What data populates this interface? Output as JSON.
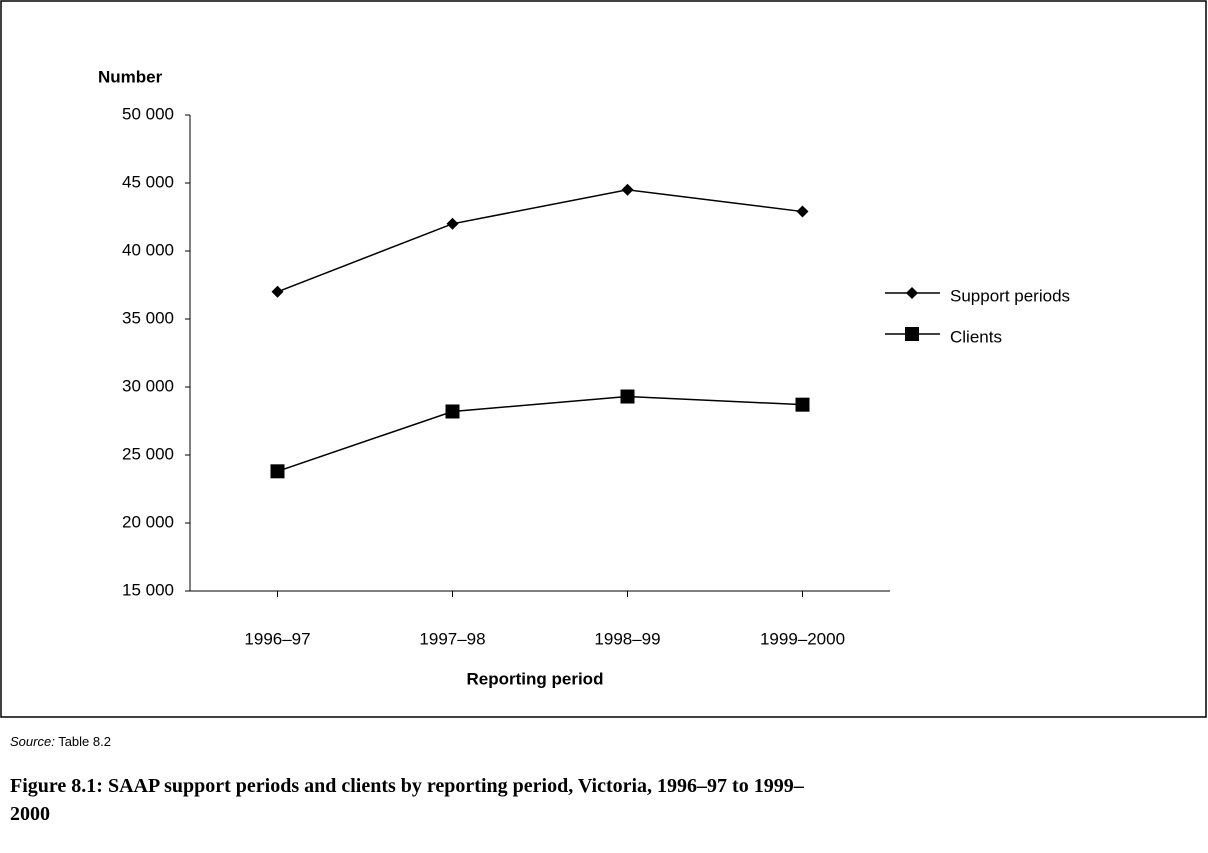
{
  "chart_data": {
    "type": "line",
    "title": "Figure 8.1: SAAP support periods and clients by reporting period, Victoria, 1996–97 to 1999–2000",
    "source_label": "Source:",
    "source_text": "Table 8.2",
    "y_label": "Number",
    "x_label": "Reporting period",
    "categories": [
      "1996–97",
      "1997–98",
      "1998–99",
      "1999–2000"
    ],
    "series": [
      {
        "name": "Support periods",
        "color": "#000000",
        "marker": "diamond",
        "values": [
          37000,
          42000,
          44500,
          42900
        ]
      },
      {
        "name": "Clients",
        "color": "#000000",
        "marker": "square",
        "values": [
          23800,
          28200,
          29300,
          28700
        ]
      }
    ],
    "ylim": [
      15000,
      50000
    ],
    "yticks": [
      {
        "value": 15000,
        "label": "15 000"
      },
      {
        "value": 20000,
        "label": "20 000"
      },
      {
        "value": 25000,
        "label": "25 000"
      },
      {
        "value": 30000,
        "label": "30 000"
      },
      {
        "value": 35000,
        "label": "35 000"
      },
      {
        "value": 40000,
        "label": "40 000"
      },
      {
        "value": 45000,
        "label": "45 000"
      },
      {
        "value": 50000,
        "label": "50 000"
      }
    ],
    "grid": false,
    "legend": "right"
  }
}
